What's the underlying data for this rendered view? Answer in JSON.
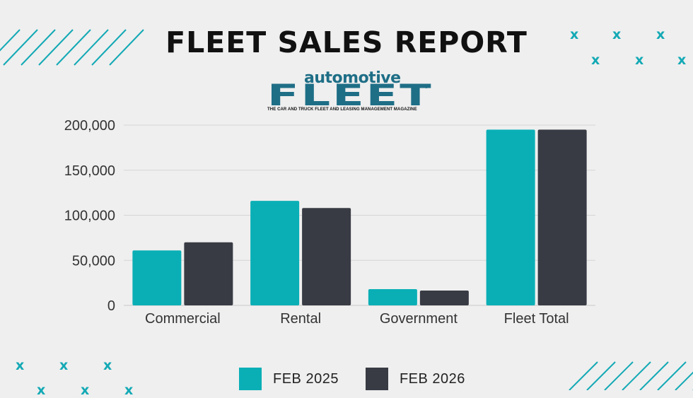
{
  "title": "FLEET SALES REPORT",
  "logo": {
    "top_text": "automotive",
    "main_text": "FLEET",
    "reg": "®",
    "subtitle": "THE CAR AND TRUCK FLEET AND LEASING MANAGEMENT MAGAZINE"
  },
  "colors": {
    "feb2025": "#0aafb6",
    "feb2026": "#383b44",
    "accent": "#13a9b5",
    "background": "#efefef"
  },
  "chart_data": {
    "type": "bar",
    "title": "FLEET SALES REPORT",
    "categories": [
      "Commercial",
      "Rental",
      "Government",
      "Fleet Total"
    ],
    "series": [
      {
        "name": "FEB 2025",
        "values": [
          61000,
          116000,
          18000,
          195000
        ],
        "color": "#0aafb6"
      },
      {
        "name": "FEB 2026",
        "values": [
          70000,
          108000,
          16500,
          195000
        ],
        "color": "#383b44"
      }
    ],
    "ylim": [
      0,
      200000
    ],
    "yticks": [
      0,
      50000,
      100000,
      150000,
      200000
    ],
    "ytick_labels": [
      "0",
      "50,000",
      "100,000",
      "150,000",
      "200,000"
    ],
    "grid": true,
    "legend": "bottom",
    "xlabel": "",
    "ylabel": ""
  },
  "decor": {
    "x_glyph": "x"
  }
}
